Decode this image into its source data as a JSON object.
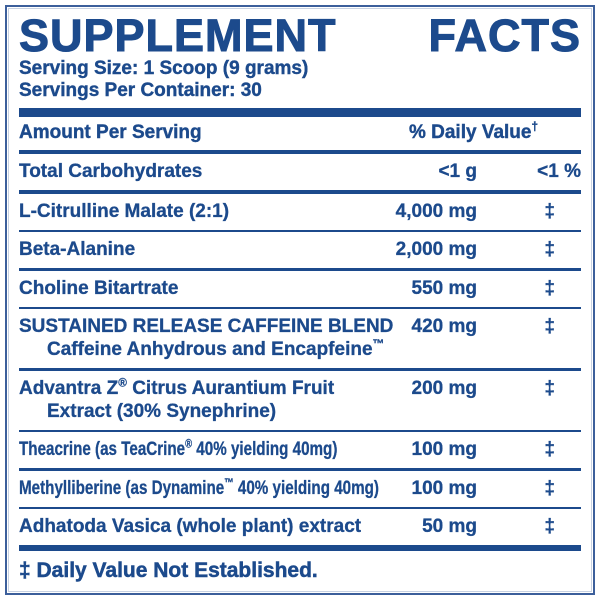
{
  "label": {
    "title_words": [
      "SUPPLEMENT",
      "FACTS"
    ],
    "serving_size": "Serving Size: 1 Scoop (9 grams)",
    "servings_per_container": "Servings Per Container: 30",
    "header": {
      "amount_label": "Amount Per Serving",
      "dv_label": "% Daily Value",
      "dv_sup": "†"
    },
    "rows": [
      {
        "name": "Total Carbohydrates",
        "amount": "<1 g",
        "dv": "<1 %",
        "sep": "medium",
        "condensed": false
      },
      {
        "name": "L-Citrulline Malate (2:1)",
        "amount": "4,000 mg",
        "dv": "‡",
        "sep": "medium",
        "condensed": false
      },
      {
        "name": "Beta-Alanine",
        "amount": "2,000 mg",
        "dv": "‡",
        "sep": "thin",
        "condensed": false
      },
      {
        "name": "Choline Bitartrate",
        "amount": "550 mg",
        "dv": "‡",
        "sep": "thin",
        "condensed": false
      },
      {
        "name": "SUSTAINED RELEASE CAFFEINE BLEND",
        "sub": "Caffeine Anhydrous and Encapfeine™",
        "amount": "420 mg",
        "dv": "‡",
        "sep": "thin",
        "condensed": false
      },
      {
        "name": "Advantra Z® Citrus Aurantium Fruit",
        "sub": "Extract (30% Synephrine)",
        "amount": "200 mg",
        "dv": "‡",
        "sep": "thin",
        "condensed": false
      },
      {
        "name": "Theacrine (as TeaCrine® 40% yielding 40mg)",
        "amount": "100 mg",
        "dv": "‡",
        "sep": "thin",
        "condensed": true
      },
      {
        "name": "Methylliberine (as Dynamine™ 40% yielding 40mg)",
        "amount": "100 mg",
        "dv": "‡",
        "sep": "thin",
        "condensed": true
      },
      {
        "name": "Adhatoda Vasica (whole plant) extract",
        "amount": "50 mg",
        "dv": "‡",
        "sep": "thin",
        "condensed": false
      }
    ],
    "footnote": "‡ Daily Value Not Established.",
    "colors": {
      "navy": "#1c4a8c",
      "background": "#ffffff"
    }
  }
}
